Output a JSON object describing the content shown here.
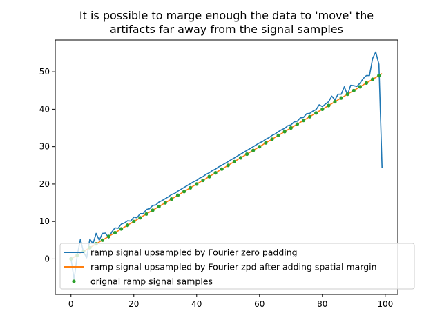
{
  "chart_data": {
    "type": "line",
    "title": [
      "It is possible to marge enough the data to 'move' the",
      "artifacts far away from the signal samples"
    ],
    "xlabel": "",
    "ylabel": "",
    "xlim": [
      -5,
      104
    ],
    "ylim": [
      -9.5,
      58.5
    ],
    "xticks": [
      0,
      20,
      40,
      60,
      80,
      100
    ],
    "yticks": [
      0,
      10,
      20,
      30,
      40,
      50
    ],
    "grid": false,
    "legend_position": "lower-right",
    "colors": {
      "blue": "#1f77b4",
      "orange": "#ff7f0e",
      "green": "#2ca02c"
    },
    "series": [
      {
        "name": "ramp signal upsampled by Fourier zero padding",
        "style": "line",
        "color": "#1f77b4",
        "x": [
          0,
          1,
          2,
          3,
          4,
          5,
          6,
          7,
          8,
          9,
          10,
          11,
          12,
          13,
          14,
          15,
          16,
          17,
          18,
          19,
          20,
          21,
          22,
          23,
          24,
          25,
          26,
          27,
          28,
          29,
          30,
          31,
          32,
          33,
          34,
          35,
          36,
          37,
          38,
          39,
          40,
          41,
          42,
          43,
          44,
          45,
          46,
          47,
          48,
          49,
          50,
          51,
          52,
          53,
          54,
          55,
          56,
          57,
          58,
          59,
          60,
          61,
          62,
          63,
          64,
          65,
          66,
          67,
          68,
          69,
          70,
          71,
          72,
          73,
          74,
          75,
          76,
          77,
          78,
          79,
          80,
          81,
          82,
          83,
          84,
          85,
          86,
          87,
          88,
          89,
          90,
          91,
          92,
          93,
          94,
          95,
          96,
          97,
          98,
          99
        ],
        "y": [
          0,
          -5.5,
          1,
          5.2,
          1.8,
          0.3,
          5.3,
          4,
          6.8,
          5,
          6.8,
          6.9,
          5.6,
          7.2,
          8.3,
          8.2,
          9.3,
          9.6,
          10.2,
          10.1,
          11.2,
          11.0,
          12.1,
          12.1,
          13.2,
          13.4,
          14.3,
          14.4,
          15.2,
          15.6,
          16.1,
          16.6,
          17.2,
          17.5,
          18.1,
          18.6,
          19.1,
          19.6,
          20.1,
          20.6,
          21.0,
          21.6,
          22.0,
          22.6,
          23.0,
          23.6,
          24.0,
          24.6,
          25.0,
          25.5,
          26.0,
          26.5,
          27.0,
          27.5,
          28.0,
          28.5,
          29.0,
          29.5,
          30.0,
          30.5,
          31.0,
          31.4,
          32.0,
          32.4,
          33.0,
          33.4,
          34.0,
          34.5,
          34.9,
          35.6,
          35.8,
          36.6,
          36.8,
          37.7,
          37.8,
          38.8,
          38.9,
          39.5,
          39.9,
          41.2,
          40.7,
          41.4,
          42.0,
          43.5,
          42.5,
          44.0,
          44.0,
          46.0,
          43.8,
          46.4,
          46.3,
          46.1,
          47.0,
          48.2,
          49.0,
          49.0,
          53.6,
          55.3,
          52.0,
          24.4
        ]
      },
      {
        "name": "ramp signal upsampled by Fourier zpd after adding spatial margin",
        "style": "line",
        "color": "#ff7f0e",
        "x": [
          0,
          1,
          2,
          3,
          4,
          5,
          6,
          7,
          8,
          9,
          10,
          11,
          12,
          13,
          14,
          15,
          16,
          17,
          18,
          19,
          20,
          21,
          22,
          23,
          24,
          25,
          26,
          27,
          28,
          29,
          30,
          31,
          32,
          33,
          34,
          35,
          36,
          37,
          38,
          39,
          40,
          41,
          42,
          43,
          44,
          45,
          46,
          47,
          48,
          49,
          50,
          51,
          52,
          53,
          54,
          55,
          56,
          57,
          58,
          59,
          60,
          61,
          62,
          63,
          64,
          65,
          66,
          67,
          68,
          69,
          70,
          71,
          72,
          73,
          74,
          75,
          76,
          77,
          78,
          79,
          80,
          81,
          82,
          83,
          84,
          85,
          86,
          87,
          88,
          89,
          90,
          91,
          92,
          93,
          94,
          95,
          96,
          97,
          98,
          99
        ],
        "y": [
          0,
          0.5,
          1,
          1.5,
          2,
          2.5,
          3,
          3.5,
          4,
          4.5,
          5,
          5.5,
          6,
          6.5,
          7,
          7.5,
          8,
          8.5,
          9,
          9.5,
          10,
          10.5,
          11,
          11.5,
          12,
          12.5,
          13,
          13.5,
          14,
          14.5,
          15,
          15.5,
          16,
          16.5,
          17,
          17.5,
          18,
          18.5,
          19,
          19.5,
          20,
          20.5,
          21,
          21.5,
          22,
          22.5,
          23,
          23.5,
          24,
          24.5,
          25,
          25.5,
          26,
          26.5,
          27,
          27.5,
          28,
          28.5,
          29,
          29.5,
          30,
          30.5,
          31,
          31.5,
          32,
          32.5,
          33,
          33.5,
          34,
          34.5,
          35,
          35.5,
          36,
          36.5,
          37,
          37.5,
          38,
          38.5,
          39,
          39.5,
          40,
          40.5,
          41,
          41.5,
          42,
          42.5,
          43,
          43.5,
          44,
          44.5,
          45,
          45.5,
          46,
          46.5,
          47,
          47.5,
          48,
          48.5,
          49,
          49.5
        ]
      },
      {
        "name": "orignal ramp signal samples",
        "style": "points",
        "color": "#2ca02c",
        "x": [
          0,
          2,
          4,
          6,
          8,
          10,
          12,
          14,
          16,
          18,
          20,
          22,
          24,
          26,
          28,
          30,
          32,
          34,
          36,
          38,
          40,
          42,
          44,
          46,
          48,
          50,
          52,
          54,
          56,
          58,
          60,
          62,
          64,
          66,
          68,
          70,
          72,
          74,
          76,
          78,
          80,
          82,
          84,
          86,
          88,
          90,
          92,
          94,
          96,
          98
        ],
        "y": [
          0,
          1,
          2,
          3,
          4,
          5,
          6,
          7,
          8,
          9,
          10,
          11,
          12,
          13,
          14,
          15,
          16,
          17,
          18,
          19,
          20,
          21,
          22,
          23,
          24,
          25,
          26,
          27,
          28,
          29,
          30,
          31,
          32,
          33,
          34,
          35,
          36,
          37,
          38,
          39,
          40,
          41,
          42,
          43,
          44,
          45,
          46,
          47,
          48,
          49
        ]
      }
    ]
  }
}
